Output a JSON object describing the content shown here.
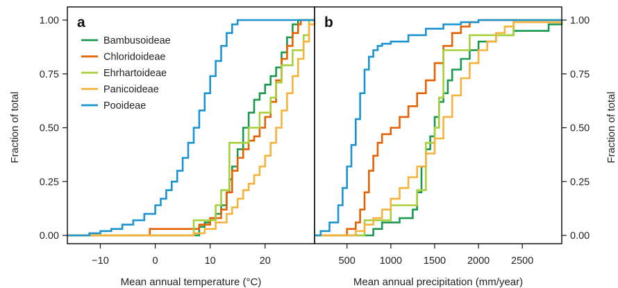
{
  "chart_data": [
    {
      "type": "line",
      "step": true,
      "panel_label": "a",
      "xlabel": "Mean annual temperature (°C)",
      "ylabel": "Fraction of total",
      "xlim": [
        -16,
        29
      ],
      "ylim": [
        0,
        1
      ],
      "xticks": [
        -10,
        0,
        10,
        20
      ],
      "xtick_labels": [
        "−10",
        "0",
        "10",
        "20"
      ],
      "yticks": [
        0,
        0.25,
        0.5,
        0.75,
        1.0
      ],
      "ytick_labels": [
        "0.00",
        "0.25",
        "0.50",
        "0.75",
        "1.00"
      ],
      "legend_position": "top-left",
      "series": [
        {
          "name": "Bambusoideae",
          "color": "#1a9850",
          "x": [
            -16,
            7.5,
            8,
            9,
            10,
            11,
            12,
            13,
            13.5,
            14,
            15,
            16,
            17,
            18,
            19,
            20,
            21,
            22,
            23,
            24,
            25,
            26,
            27,
            29
          ],
          "y": [
            0,
            0,
            0.04,
            0.06,
            0.08,
            0.1,
            0.14,
            0.2,
            0.26,
            0.32,
            0.4,
            0.5,
            0.57,
            0.63,
            0.66,
            0.7,
            0.74,
            0.78,
            0.85,
            0.92,
            0.98,
            1.0,
            1.0,
            1.0
          ]
        },
        {
          "name": "Chloridoideae",
          "color": "#e66101",
          "x": [
            -16,
            -2,
            -1,
            2,
            5,
            8,
            10,
            12,
            13,
            14,
            15,
            16,
            17,
            18,
            19,
            20,
            21,
            22,
            23,
            24,
            25,
            26,
            26.5,
            29
          ],
          "y": [
            0,
            0,
            0.03,
            0.03,
            0.03,
            0.05,
            0.08,
            0.12,
            0.2,
            0.3,
            0.36,
            0.4,
            0.44,
            0.46,
            0.5,
            0.55,
            0.62,
            0.72,
            0.82,
            0.88,
            0.94,
            0.98,
            1.0,
            1.0
          ]
        },
        {
          "name": "Ehrhartoideae",
          "color": "#a6cf3a",
          "x": [
            -16,
            6,
            7,
            8,
            11,
            12,
            13,
            13.5,
            14,
            15,
            16,
            17,
            18,
            19,
            20,
            21,
            22,
            23,
            24,
            25,
            26,
            27,
            28,
            29
          ],
          "y": [
            0,
            0,
            0.07,
            0.07,
            0.14,
            0.21,
            0.21,
            0.43,
            0.43,
            0.43,
            0.43,
            0.5,
            0.5,
            0.57,
            0.57,
            0.64,
            0.71,
            0.79,
            0.79,
            0.86,
            0.86,
            0.93,
            1.0,
            1.0
          ]
        },
        {
          "name": "Panicoideae",
          "color": "#f6b23a",
          "x": [
            -16,
            5,
            7,
            9,
            11,
            13,
            14,
            15,
            16,
            17,
            18,
            19,
            20,
            21,
            22,
            23,
            24,
            25,
            26,
            27,
            28,
            29
          ],
          "y": [
            0,
            0,
            0.01,
            0.03,
            0.06,
            0.1,
            0.13,
            0.17,
            0.21,
            0.24,
            0.28,
            0.32,
            0.37,
            0.43,
            0.5,
            0.58,
            0.66,
            0.74,
            0.82,
            0.9,
            0.98,
            1.0
          ]
        },
        {
          "name": "Pooideae",
          "color": "#1a93d0",
          "x": [
            -16,
            -12,
            -10,
            -8,
            -6,
            -4,
            -2,
            0,
            1,
            2,
            3,
            4,
            5,
            6,
            7,
            8,
            9,
            10,
            11,
            12,
            13,
            14,
            15,
            16,
            20,
            29
          ],
          "y": [
            0,
            0.01,
            0.02,
            0.03,
            0.05,
            0.07,
            0.1,
            0.14,
            0.17,
            0.21,
            0.25,
            0.3,
            0.36,
            0.43,
            0.5,
            0.58,
            0.66,
            0.74,
            0.81,
            0.88,
            0.94,
            0.98,
            1.0,
            1.0,
            1.0,
            1.0
          ]
        }
      ]
    },
    {
      "type": "line",
      "step": true,
      "panel_label": "b",
      "xlabel": "Mean annual precipitation (mm/year)",
      "ylabel": "Fraction of total",
      "xlim": [
        130,
        2950
      ],
      "ylim": [
        0,
        1
      ],
      "xticks": [
        500,
        1000,
        1500,
        2000,
        2500
      ],
      "xtick_labels": [
        "500",
        "1000",
        "1500",
        "2000",
        "2500"
      ],
      "yticks": [
        0,
        0.25,
        0.5,
        0.75,
        1.0
      ],
      "ytick_labels": [
        "0.00",
        "0.25",
        "0.50",
        "0.75",
        "1.00"
      ],
      "series": [
        {
          "name": "Bambusoideae",
          "color": "#1a9850",
          "x": [
            130,
            750,
            800,
            900,
            1100,
            1250,
            1300,
            1350,
            1400,
            1450,
            1500,
            1550,
            1600,
            1650,
            1700,
            1800,
            1900,
            2000,
            2200,
            2400,
            2800,
            2950
          ],
          "y": [
            0,
            0,
            0.03,
            0.06,
            0.08,
            0.12,
            0.2,
            0.32,
            0.4,
            0.46,
            0.55,
            0.62,
            0.66,
            0.72,
            0.77,
            0.82,
            0.86,
            0.9,
            0.93,
            0.95,
            0.98,
            1.0
          ]
        },
        {
          "name": "Chloridoideae",
          "color": "#e66101",
          "x": [
            130,
            400,
            500,
            600,
            650,
            700,
            750,
            800,
            850,
            900,
            1000,
            1100,
            1200,
            1300,
            1400,
            1500,
            1600,
            1700,
            1800,
            1900,
            2000,
            2950
          ],
          "y": [
            0,
            0,
            0.03,
            0.06,
            0.12,
            0.2,
            0.3,
            0.37,
            0.43,
            0.47,
            0.5,
            0.55,
            0.6,
            0.66,
            0.72,
            0.8,
            0.88,
            0.94,
            0.97,
            0.99,
            1.0,
            1.0
          ]
        },
        {
          "name": "Ehrhartoideae",
          "color": "#a6cf3a",
          "x": [
            130,
            650,
            700,
            800,
            1000,
            1200,
            1300,
            1400,
            1500,
            1550,
            1600,
            1700,
            1800,
            1900,
            2000,
            2100,
            2200,
            2300,
            2400,
            2950
          ],
          "y": [
            0,
            0,
            0.07,
            0.07,
            0.14,
            0.14,
            0.21,
            0.43,
            0.5,
            0.64,
            0.86,
            0.86,
            0.86,
            0.93,
            0.93,
            0.93,
            0.93,
            0.93,
            1.0,
            1.0
          ]
        },
        {
          "name": "Panicoideae",
          "color": "#f6b23a",
          "x": [
            130,
            500,
            600,
            700,
            800,
            900,
            1000,
            1100,
            1200,
            1300,
            1400,
            1500,
            1600,
            1700,
            1800,
            1900,
            2000,
            2100,
            2200,
            2300,
            2400,
            2950
          ],
          "y": [
            0,
            0,
            0.02,
            0.05,
            0.08,
            0.12,
            0.17,
            0.22,
            0.27,
            0.32,
            0.38,
            0.45,
            0.55,
            0.65,
            0.73,
            0.8,
            0.86,
            0.9,
            0.94,
            0.97,
            0.99,
            1.0
          ]
        },
        {
          "name": "Pooideae",
          "color": "#1a93d0",
          "x": [
            130,
            200,
            300,
            400,
            450,
            500,
            550,
            600,
            650,
            700,
            750,
            800,
            850,
            900,
            1000,
            1200,
            1400,
            1600,
            1800,
            2000,
            2400,
            2950
          ],
          "y": [
            0,
            0.02,
            0.06,
            0.14,
            0.22,
            0.32,
            0.42,
            0.54,
            0.66,
            0.77,
            0.83,
            0.86,
            0.88,
            0.89,
            0.9,
            0.93,
            0.96,
            0.98,
            0.99,
            1.0,
            1.0,
            1.0
          ]
        }
      ]
    }
  ]
}
